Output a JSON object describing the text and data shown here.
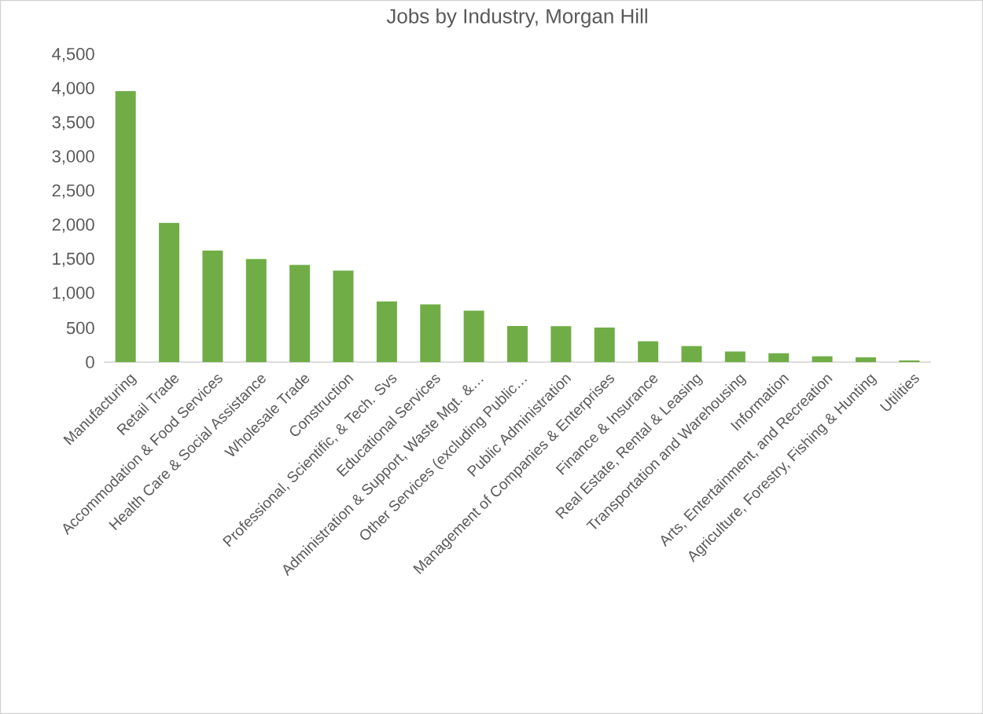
{
  "chart_data": {
    "type": "bar",
    "title": "Jobs by Industry, Morgan Hill",
    "categories": [
      "Manufacturing",
      "Retail Trade",
      "Accommodation & Food Services",
      "Health Care & Social Assistance",
      "Wholesale Trade",
      "Construction",
      "Professional, Scientific, & Tech. Svs",
      "Educational Services",
      "Administration & Support, Waste Mgt. &…",
      "Other Services (excluding Public…",
      "Public Administration",
      "Management of Companies & Enterprises",
      "Finance & Insurance",
      "Real Estate, Rental & Leasing",
      "Transportation and Warehousing",
      "Information",
      "Arts, Entertainment, and Recreation",
      "Agriculture, Forestry, Fishing & Hunting",
      "Utilities"
    ],
    "values": [
      3970,
      2040,
      1635,
      1510,
      1425,
      1340,
      890,
      845,
      755,
      530,
      525,
      505,
      305,
      235,
      155,
      130,
      85,
      70,
      25
    ],
    "color": "#70ad47",
    "ylim": [
      0,
      4500
    ],
    "yticks": [
      0,
      500,
      {
        "value": 1000,
        "label": "1,000"
      },
      {
        "value": 1500,
        "label": "1,500"
      },
      {
        "value": 2000,
        "label": "2,000"
      },
      {
        "value": 2500,
        "label": "2,500"
      },
      {
        "value": 3000,
        "label": "3,000"
      },
      {
        "value": 3500,
        "label": "3,500"
      },
      {
        "value": 4000,
        "label": "4,000"
      },
      {
        "value": 4500,
        "label": "4,500"
      }
    ]
  }
}
